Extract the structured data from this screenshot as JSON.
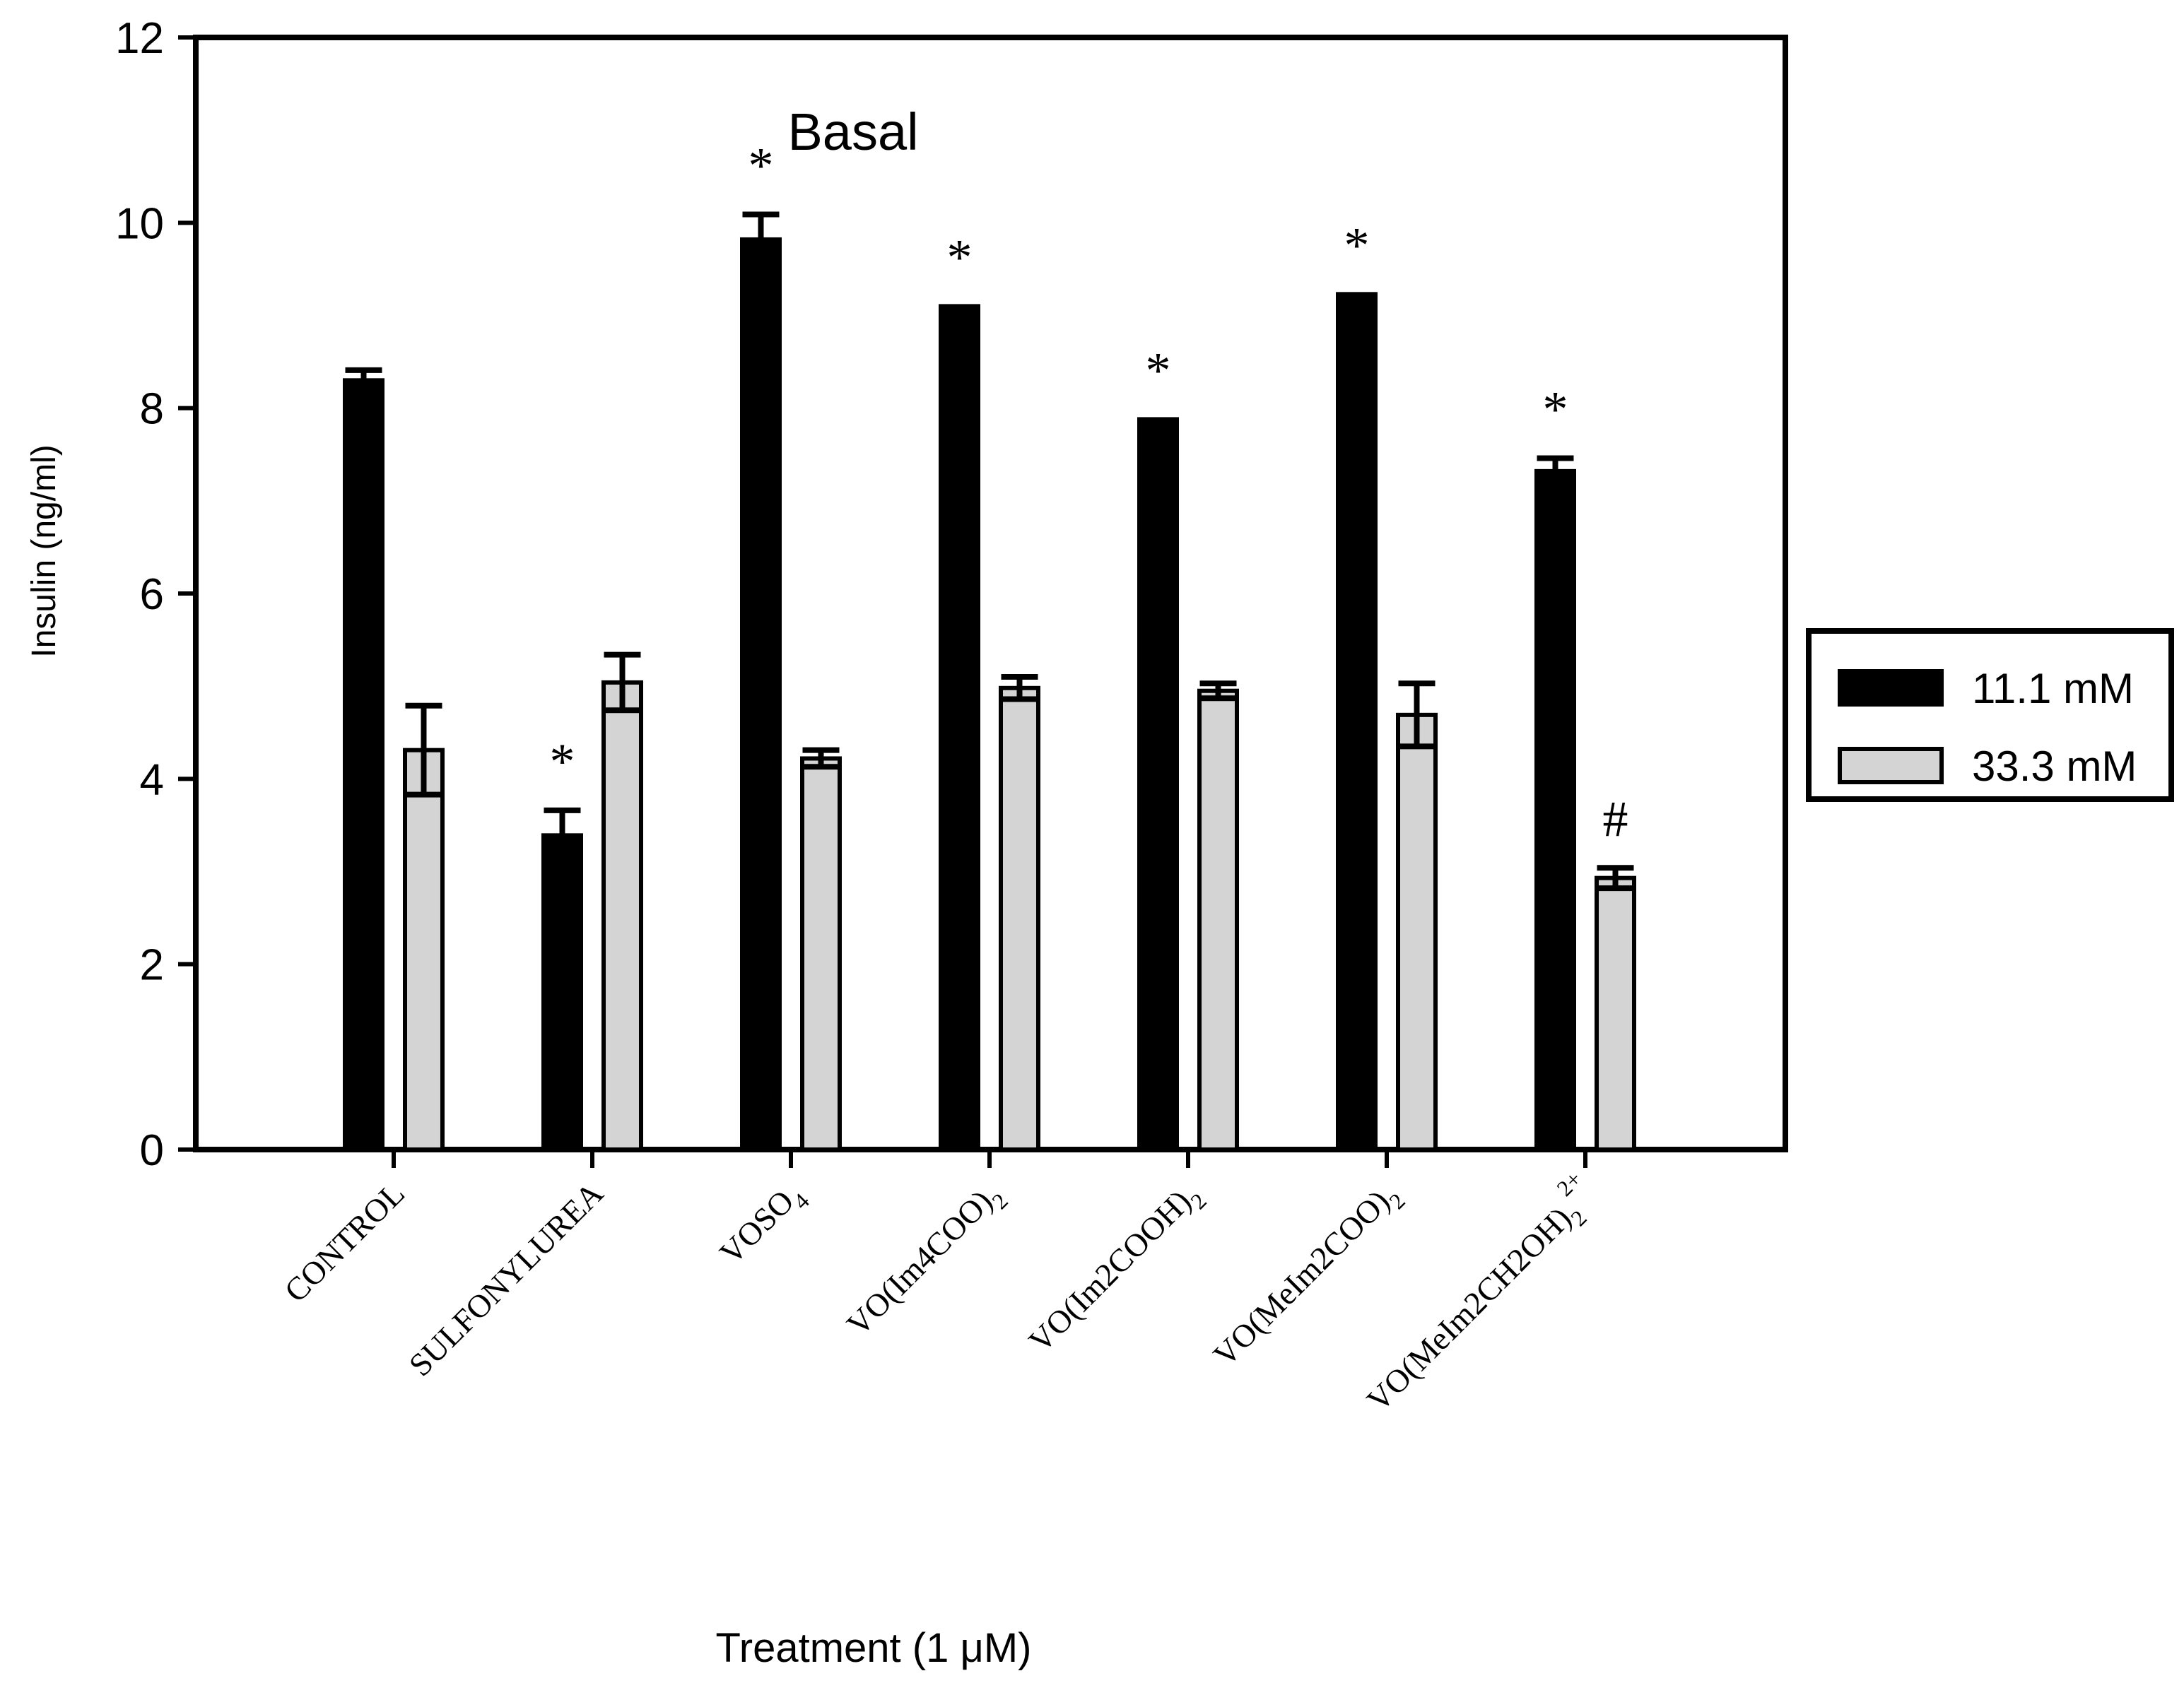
{
  "title": "Basal",
  "y_axis": {
    "label": "Insulin (ng/ml)",
    "min": 0,
    "max": 12,
    "ticks": [
      0,
      2,
      4,
      6,
      8,
      10,
      12
    ]
  },
  "x_axis": {
    "label": "Treatment (1 μM)"
  },
  "legend": {
    "items": [
      {
        "label": "11.1 mM",
        "color": "#000000"
      },
      {
        "label": "33.3 mM",
        "color": "#d4d4d4"
      }
    ]
  },
  "chart_data": {
    "type": "bar",
    "title": "Basal",
    "xlabel": "Treatment (1 μM)",
    "ylabel": "Insulin (ng/ml)",
    "ylim": [
      0,
      12
    ],
    "yticks": [
      0,
      2,
      4,
      6,
      8,
      10,
      12
    ],
    "grid": false,
    "legend_position": "outside-right",
    "bar_outline_color": "#000000",
    "categories": [
      [
        {
          "t": "CONTROL"
        }
      ],
      [
        {
          "t": "SULFONYLUREA"
        }
      ],
      [
        {
          "t": "VOSO"
        },
        {
          "t": "4",
          "style": "sub"
        }
      ],
      [
        {
          "t": "VO(Im4COO)"
        },
        {
          "t": "2",
          "style": "sub"
        }
      ],
      [
        {
          "t": "VO(Im2COOH)"
        },
        {
          "t": "2",
          "style": "sub"
        }
      ],
      [
        {
          "t": "VO(MeIm2COO)"
        },
        {
          "t": "2",
          "style": "sub"
        }
      ],
      [
        {
          "t": "VO(MeIm2CH2OH)"
        },
        {
          "t": "2",
          "style": "sub"
        },
        {
          "t": "2+",
          "style": "sup"
        }
      ]
    ],
    "series": [
      {
        "name": "11.1 mM",
        "color": "#000000",
        "values": [
          8.3,
          3.39,
          9.82,
          9.1,
          7.88,
          9.23,
          7.32
        ],
        "errors": [
          0.11,
          0.27,
          0.27,
          0,
          0,
          0,
          0.14
        ]
      },
      {
        "name": "33.3 mM",
        "color": "#d4d4d4",
        "values": [
          4.31,
          5.04,
          4.22,
          4.98,
          4.95,
          4.69,
          2.93
        ],
        "errors": [
          0.48,
          0.3,
          0.09,
          0.12,
          0.08,
          0.34,
          0.11
        ]
      }
    ],
    "annotations": [
      {
        "category": 1,
        "series": 0,
        "symbol": "*"
      },
      {
        "category": 2,
        "series": 0,
        "symbol": "*"
      },
      {
        "category": 3,
        "series": 0,
        "symbol": "*"
      },
      {
        "category": 4,
        "series": 0,
        "symbol": "*"
      },
      {
        "category": 5,
        "series": 0,
        "symbol": "*"
      },
      {
        "category": 6,
        "series": 0,
        "symbol": "*"
      },
      {
        "category": 6,
        "series": 1,
        "symbol": "#"
      }
    ]
  }
}
